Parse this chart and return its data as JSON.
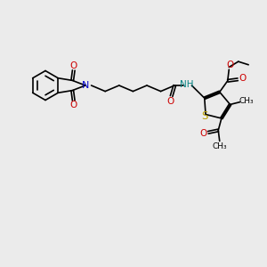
{
  "bg_color": "#ebebeb",
  "line_color": "#000000",
  "N_color": "#0000cc",
  "O_color": "#cc0000",
  "S_color": "#b8a000",
  "H_color": "#008080",
  "font_size": 7.0,
  "line_width": 1.2,
  "xlim": [
    0,
    10
  ],
  "ylim": [
    0,
    10
  ]
}
